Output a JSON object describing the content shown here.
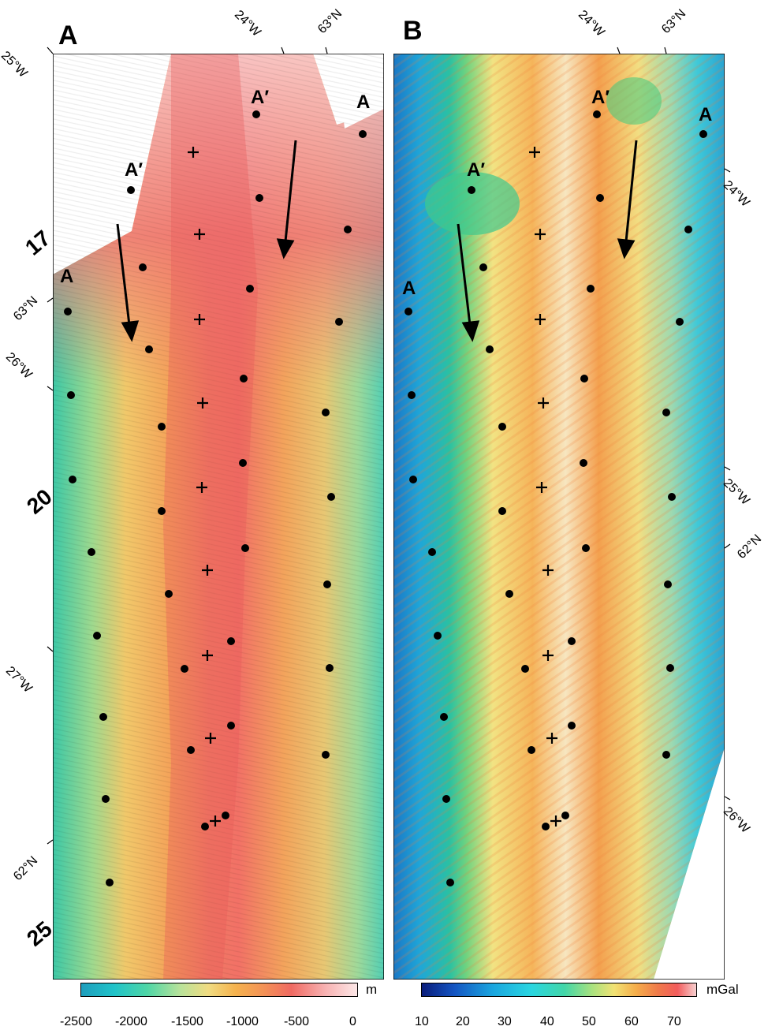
{
  "panel_a": {
    "label": "A",
    "coords": {
      "lon_25": "25°W",
      "lon_24": "24°W",
      "lat_63": "63°N",
      "lon_26": "26°W",
      "lon_27": "27°W",
      "lat_63_left": "63°N",
      "lat_62": "62°N"
    },
    "profile_labels": [
      "A′",
      "A",
      "A′",
      "A"
    ],
    "age_labels": [
      "17",
      "20",
      "25"
    ],
    "colorbar": {
      "unit": "m",
      "ticks": [
        "-2500",
        "-2000",
        "-1500",
        "-1000",
        "-500",
        "0"
      ],
      "colors": [
        "#1e9dbc",
        "#20c3c9",
        "#4fd6a6",
        "#b9e29a",
        "#f0dc82",
        "#f5b24e",
        "#f39256",
        "#f06a62",
        "#f7b0b0",
        "#fde8e8"
      ]
    }
  },
  "panel_b": {
    "label": "B",
    "coords": {
      "lon_24": "24°W",
      "lat_63": "63°N",
      "lon_24_right": "24°W",
      "lon_25": "25°W",
      "lat_62": "62°N",
      "lon_26": "26°W"
    },
    "profile_labels": [
      "A′",
      "A",
      "A′",
      "A"
    ],
    "colorbar": {
      "unit": "mGal",
      "ticks": [
        "10",
        "20",
        "30",
        "40",
        "50",
        "60",
        "70"
      ],
      "colors": [
        "#0a1c7a",
        "#1455c2",
        "#1aa6df",
        "#2ad6e0",
        "#42d6a8",
        "#a9e27f",
        "#f1e274",
        "#f5ad4a",
        "#f07a4a",
        "#f25c5c",
        "#f7d3d3"
      ]
    }
  }
}
